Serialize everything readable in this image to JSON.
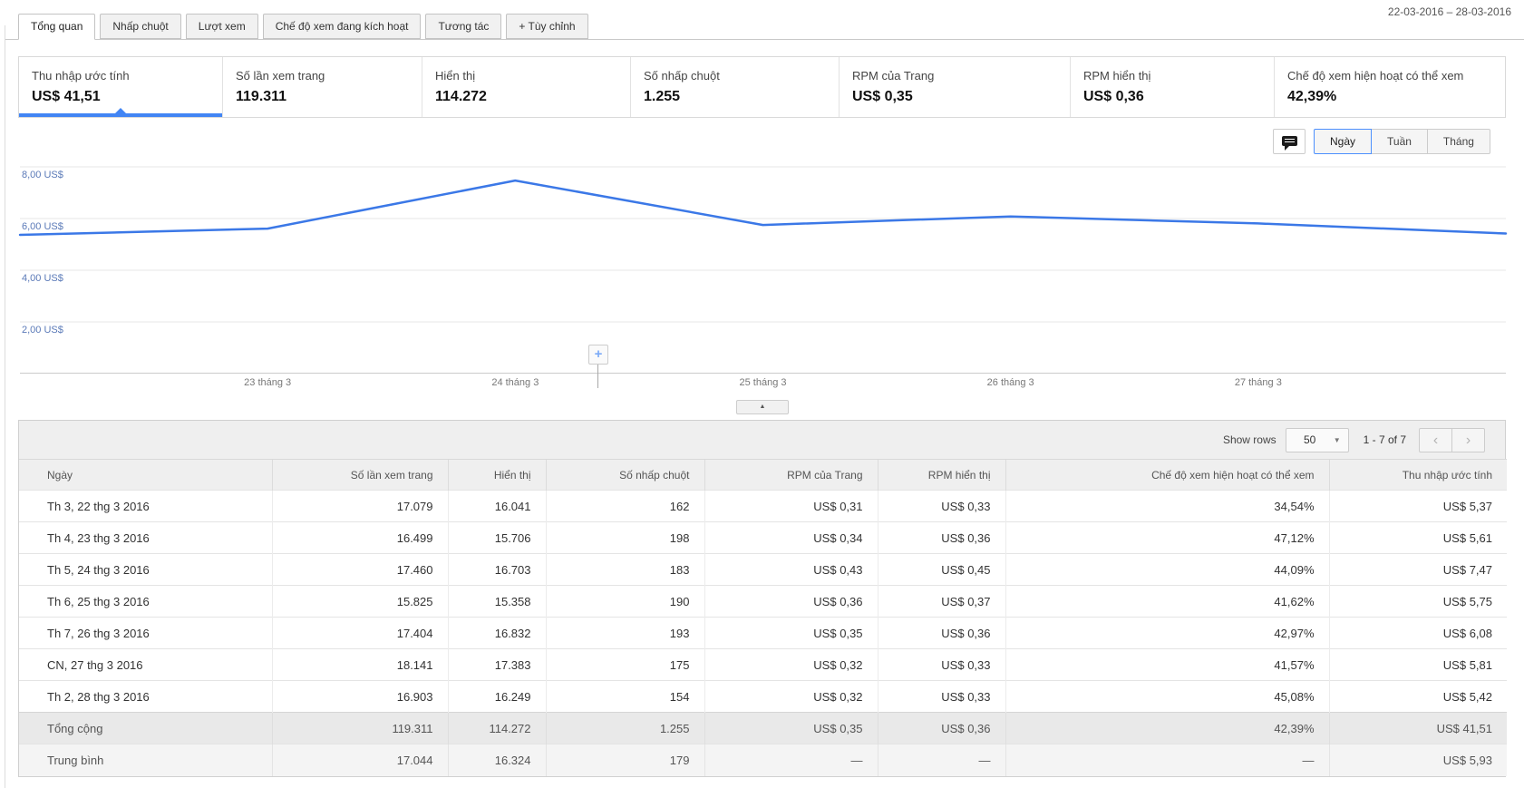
{
  "header": {
    "date_range": "22-03-2016 – 28-03-2016"
  },
  "tabs": [
    {
      "label": "Tổng quan",
      "active": true
    },
    {
      "label": "Nhấp chuột",
      "active": false
    },
    {
      "label": "Lượt xem",
      "active": false
    },
    {
      "label": "Chế độ xem đang kích hoạt",
      "active": false
    },
    {
      "label": "Tương tác",
      "active": false
    },
    {
      "label": "+ Tùy chỉnh",
      "active": false
    }
  ],
  "summary_cards": [
    {
      "title": "Thu nhập ước tính",
      "value": "US$ 41,51",
      "active": true
    },
    {
      "title": "Số lần xem trang",
      "value": "119.311",
      "active": false
    },
    {
      "title": "Hiển thị",
      "value": "114.272",
      "active": false
    },
    {
      "title": "Số nhấp chuột",
      "value": "1.255",
      "active": false
    },
    {
      "title": "RPM của Trang",
      "value": "US$ 0,35",
      "active": false
    },
    {
      "title": "RPM hiển thị",
      "value": "US$ 0,36",
      "active": false
    },
    {
      "title": "Chế độ xem hiện hoạt có thể xem",
      "value": "42,39%",
      "active": false
    }
  ],
  "chart_controls": {
    "comment_icon": "comment-bubble",
    "granularity": [
      {
        "label": "Ngày",
        "active": true
      },
      {
        "label": "Tuần",
        "active": false
      },
      {
        "label": "Tháng",
        "active": false
      }
    ]
  },
  "chart_data": {
    "type": "line",
    "series": [
      {
        "name": "Thu nhập ước tính",
        "values": [
          5.37,
          5.61,
          7.47,
          5.75,
          6.08,
          5.81,
          5.42
        ]
      }
    ],
    "categories": [
      "22 thg 3 2016",
      "23 thg 3 2016",
      "24 thg 3 2016",
      "25 thg 3 2016",
      "26 thg 3 2016",
      "27 thg 3 2016",
      "28 thg 3 2016"
    ],
    "x_tick_labels": [
      "23 tháng 3",
      "24 tháng 3",
      "25 tháng 3",
      "26 tháng 3",
      "27 tháng 3"
    ],
    "y_tick_labels": [
      "2,00 US$",
      "4,00 US$",
      "6,00 US$",
      "8,00 US$"
    ],
    "y_tick_values": [
      2,
      4,
      6,
      8
    ],
    "ylim": [
      0,
      8.5
    ],
    "grid": "horizontal",
    "legend": "none",
    "line_color": "#3b78e7",
    "plus_marker_label": "+",
    "collapse_button_glyph": "▲"
  },
  "table": {
    "controls": {
      "show_rows_label": "Show rows",
      "rows_per_page": "50",
      "dropdown_arrow": "▼",
      "range_label": "1 - 7 of 7",
      "prev_glyph": "‹",
      "next_glyph": "›"
    },
    "columns": [
      "Ngày",
      "Số lần xem trang",
      "Hiển thị",
      "Số nhấp chuột",
      "RPM của Trang",
      "RPM hiển thị",
      "Chế độ xem hiện hoạt có thể xem",
      "Thu nhập ước tính"
    ],
    "rows": [
      [
        "Th 3, 22 thg 3 2016",
        "17.079",
        "16.041",
        "162",
        "US$ 0,31",
        "US$ 0,33",
        "34,54%",
        "US$ 5,37"
      ],
      [
        "Th 4, 23 thg 3 2016",
        "16.499",
        "15.706",
        "198",
        "US$ 0,34",
        "US$ 0,36",
        "47,12%",
        "US$ 5,61"
      ],
      [
        "Th 5, 24 thg 3 2016",
        "17.460",
        "16.703",
        "183",
        "US$ 0,43",
        "US$ 0,45",
        "44,09%",
        "US$ 7,47"
      ],
      [
        "Th 6, 25 thg 3 2016",
        "15.825",
        "15.358",
        "190",
        "US$ 0,36",
        "US$ 0,37",
        "41,62%",
        "US$ 5,75"
      ],
      [
        "Th 7, 26 thg 3 2016",
        "17.404",
        "16.832",
        "193",
        "US$ 0,35",
        "US$ 0,36",
        "42,97%",
        "US$ 6,08"
      ],
      [
        "CN, 27 thg 3 2016",
        "18.141",
        "17.383",
        "175",
        "US$ 0,32",
        "US$ 0,33",
        "41,57%",
        "US$ 5,81"
      ],
      [
        "Th 2, 28 thg 3 2016",
        "16.903",
        "16.249",
        "154",
        "US$ 0,32",
        "US$ 0,33",
        "45,08%",
        "US$ 5,42"
      ]
    ],
    "totals_row": [
      "Tổng cộng",
      "119.311",
      "114.272",
      "1.255",
      "US$ 0,35",
      "US$ 0,36",
      "42,39%",
      "US$ 41,51"
    ],
    "average_row": [
      "Trung bình",
      "17.044",
      "16.324",
      "179",
      "—",
      "—",
      "—",
      "US$ 5,93"
    ]
  }
}
